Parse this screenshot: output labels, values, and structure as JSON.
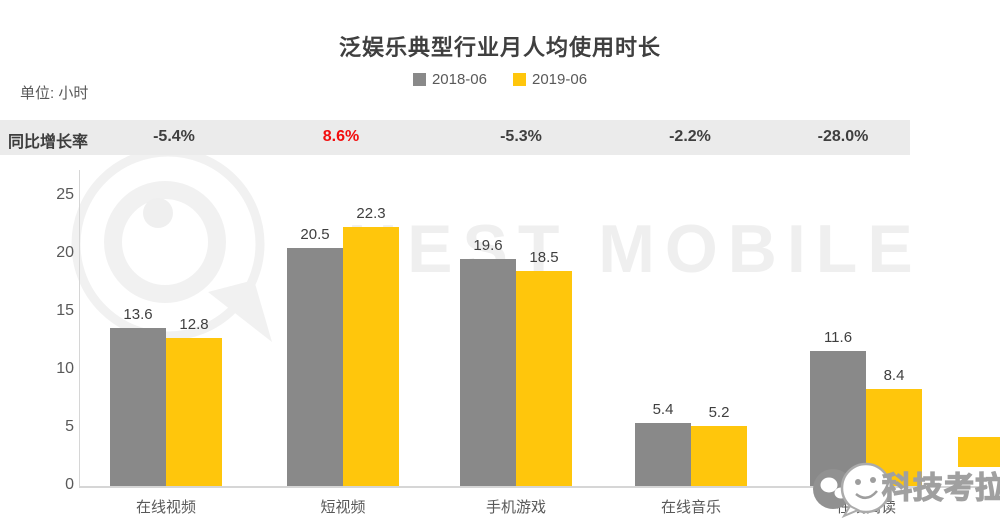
{
  "header": {
    "title": "泛娱乐典型行业月人均使用时长",
    "unit_label": "单位: 小时"
  },
  "growth_row": {
    "label": "同比增长率",
    "values": [
      {
        "text": "-5.4%",
        "color": "#3f3f3f"
      },
      {
        "text": "8.6%",
        "color": "#f20d0d"
      },
      {
        "text": "-5.3%",
        "color": "#3f3f3f"
      },
      {
        "text": "-2.2%",
        "color": "#3f3f3f"
      },
      {
        "text": "-28.0%",
        "color": "#3f3f3f"
      }
    ]
  },
  "chart_data": {
    "type": "bar",
    "title": "泛娱乐典型行业月人均使用时长",
    "unit": "小时",
    "categories": [
      "在线视频",
      "短视频",
      "手机游戏",
      "在线音乐",
      "在线阅读"
    ],
    "series": [
      {
        "name": "2018-06",
        "color": "#898989",
        "values": [
          13.6,
          20.5,
          19.6,
          5.4,
          11.6
        ]
      },
      {
        "name": "2019-06",
        "color": "#ffc60c",
        "values": [
          12.8,
          22.3,
          18.5,
          5.2,
          8.4
        ]
      }
    ],
    "yoy_growth_label": "同比增长率",
    "yoy_growth": [
      "-5.4%",
      "8.6%",
      "-5.3%",
      "-2.2%",
      "-28.0%"
    ],
    "yoy_growth_highlight_index": 1,
    "yticks": [
      0,
      5,
      10,
      15,
      20,
      25
    ],
    "ylim": [
      0,
      25
    ],
    "grid": false,
    "legend_position": "top-center",
    "value_labels": true
  },
  "watermarks": {
    "questmobile_text": "UEST MOBILE",
    "brand_text": "科技考拉"
  }
}
